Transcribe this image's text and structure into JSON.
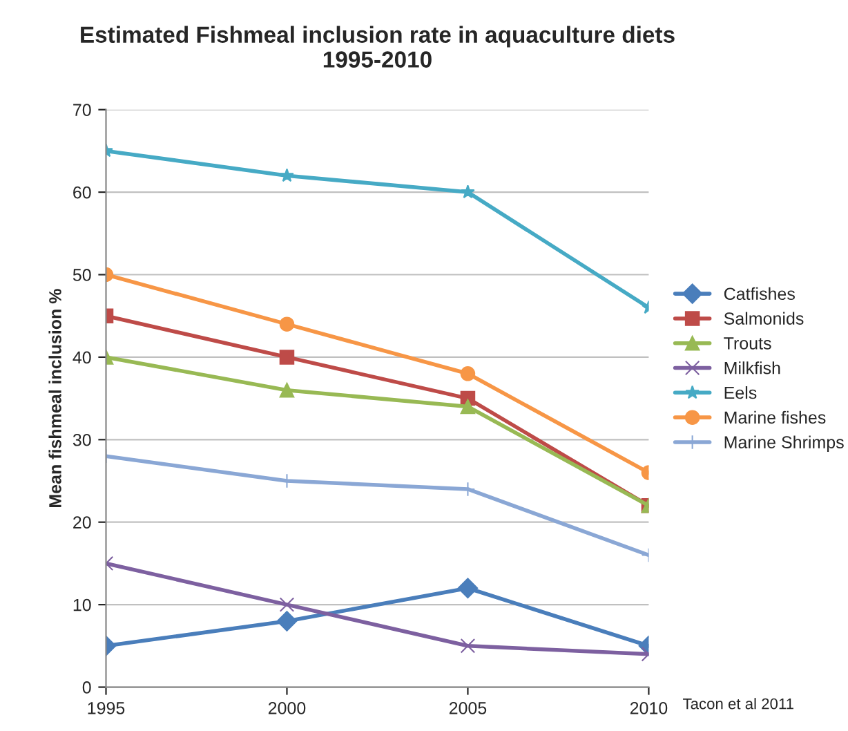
{
  "chart_data": {
    "type": "line",
    "title": "Estimated Fishmeal inclusion rate in aquaculture diets\n1995-2010",
    "ylabel": "Mean fishmeal inclusion %",
    "x": [
      1995,
      2000,
      2005,
      2010
    ],
    "xlim": [
      1995,
      2010
    ],
    "xticks": [
      1995,
      2000,
      2005,
      2010
    ],
    "ylim": [
      0,
      70
    ],
    "yticks": [
      0,
      10,
      20,
      30,
      40,
      50,
      60,
      70
    ],
    "grid": "y",
    "legend": "right",
    "series": [
      {
        "name": "Catfishes",
        "color": "#4a7ebb",
        "marker": "diamond",
        "values": [
          5,
          8,
          12,
          5
        ]
      },
      {
        "name": "Salmonids",
        "color": "#be4b48",
        "marker": "square",
        "values": [
          45,
          40,
          35,
          22
        ]
      },
      {
        "name": "Trouts",
        "color": "#98b954",
        "marker": "triangle",
        "values": [
          40,
          36,
          34,
          22
        ]
      },
      {
        "name": "Milkfish",
        "color": "#7d60a0",
        "marker": "cross",
        "values": [
          15,
          10,
          5,
          4
        ]
      },
      {
        "name": "Eels",
        "color": "#46aac5",
        "marker": "star",
        "values": [
          65,
          62,
          60,
          46
        ]
      },
      {
        "name": "Marine fishes",
        "color": "#f79646",
        "marker": "circle",
        "values": [
          50,
          44,
          38,
          26
        ]
      },
      {
        "name": "Marine Shrimps",
        "color": "#8aa7d5",
        "marker": "plus",
        "values": [
          28,
          25,
          24,
          16
        ]
      }
    ],
    "annotations": [
      "Tacon et al 2011"
    ]
  }
}
